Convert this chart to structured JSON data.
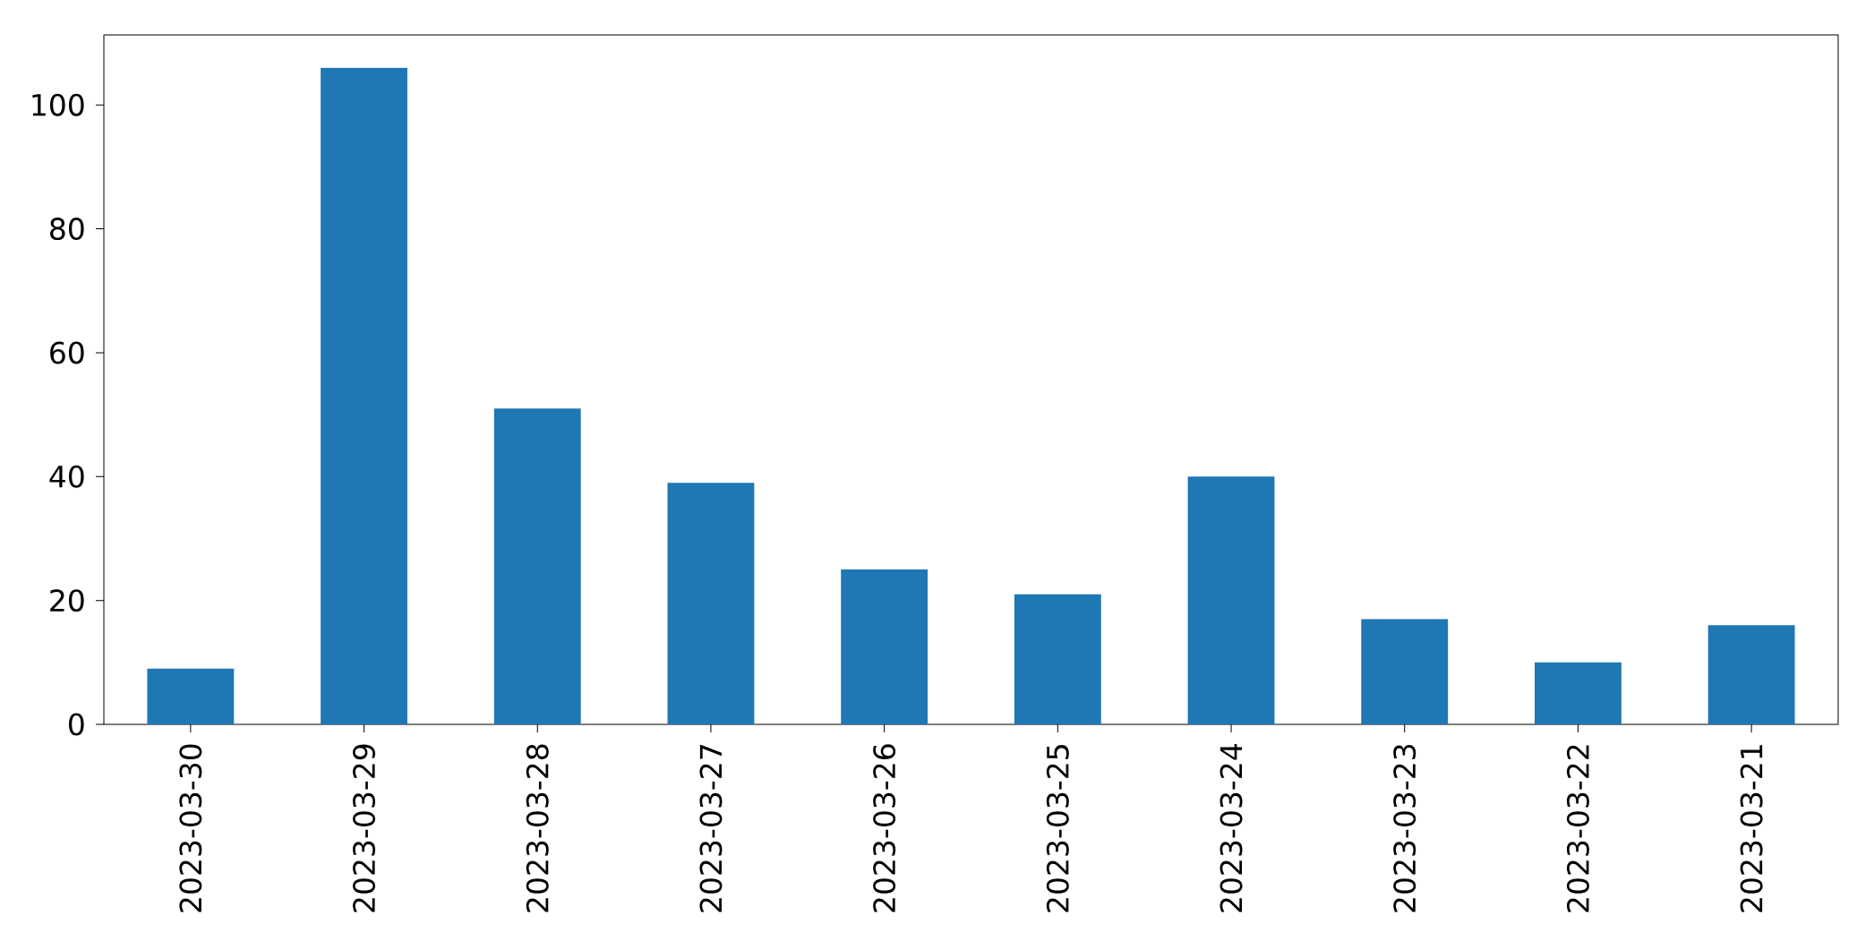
{
  "chart_data": {
    "type": "bar",
    "categories": [
      "2023-03-30",
      "2023-03-29",
      "2023-03-28",
      "2023-03-27",
      "2023-03-26",
      "2023-03-25",
      "2023-03-24",
      "2023-03-23",
      "2023-03-22",
      "2023-03-21"
    ],
    "values": [
      9,
      106,
      51,
      39,
      25,
      21,
      40,
      17,
      10,
      16
    ],
    "color": "#1f77b4",
    "ylim": [
      0,
      111.3
    ],
    "yticks": [
      0,
      20,
      40,
      60,
      80,
      100
    ],
    "grid": false
  }
}
